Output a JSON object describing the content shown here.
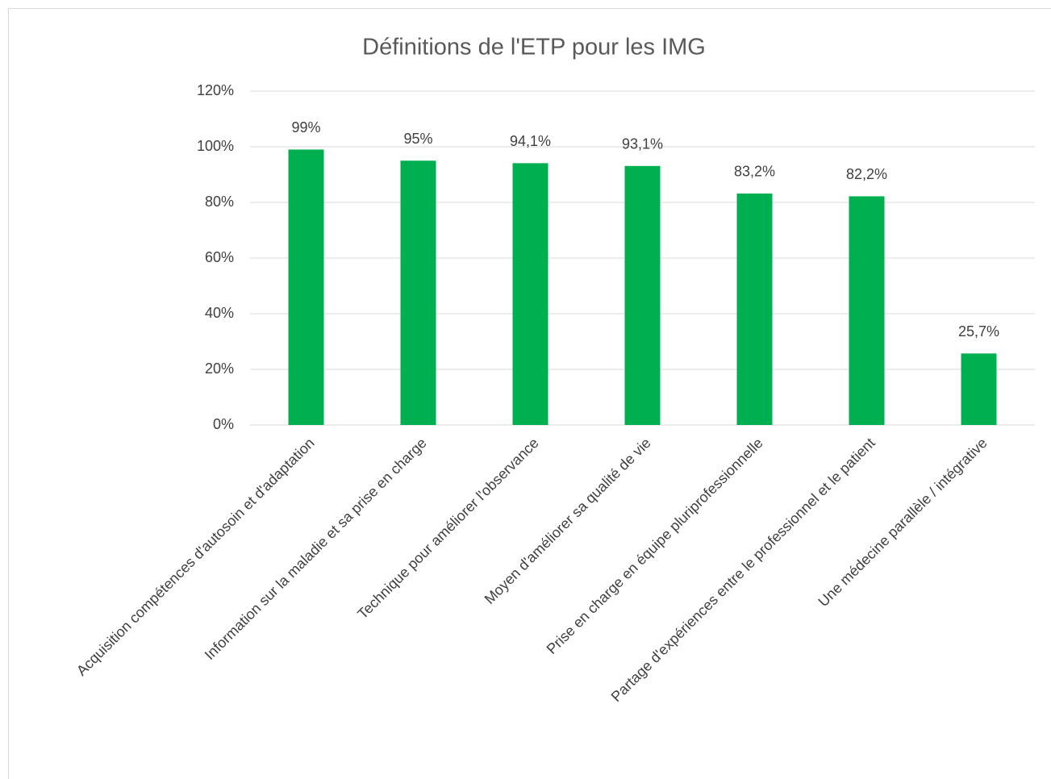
{
  "chart_data": {
    "type": "bar",
    "title": "Définitions de l'ETP pour les IMG",
    "categories": [
      "Acquisition compétences d'autosoin et d'adaptation",
      "Information sur la maladie et sa prise en charge",
      "Technique pour améliorer l'observance",
      "Moyen d'améliorer sa qualité de vie",
      "Prise en charge en équipe pluriprofessionnelle",
      "Partage d'expériences entre le professionnel et le patient",
      "Une médecine parallèle / intégrative"
    ],
    "values": [
      99,
      95,
      94.1,
      93.1,
      83.2,
      82.2,
      25.7
    ],
    "value_labels": [
      "99%",
      "95%",
      "94,1%",
      "93,1%",
      "83,2%",
      "82,2%",
      "25,7%"
    ],
    "color": "#00b050",
    "ylim": [
      0,
      120
    ],
    "yticks": [
      {
        "value": 0,
        "label": "0%"
      },
      {
        "value": 20,
        "label": "20%"
      },
      {
        "value": 40,
        "label": "40%"
      },
      {
        "value": 60,
        "label": "60%"
      },
      {
        "value": 80,
        "label": "80%"
      },
      {
        "value": 100,
        "label": "100%"
      },
      {
        "value": 120,
        "label": "120%"
      }
    ],
    "grid": true
  }
}
